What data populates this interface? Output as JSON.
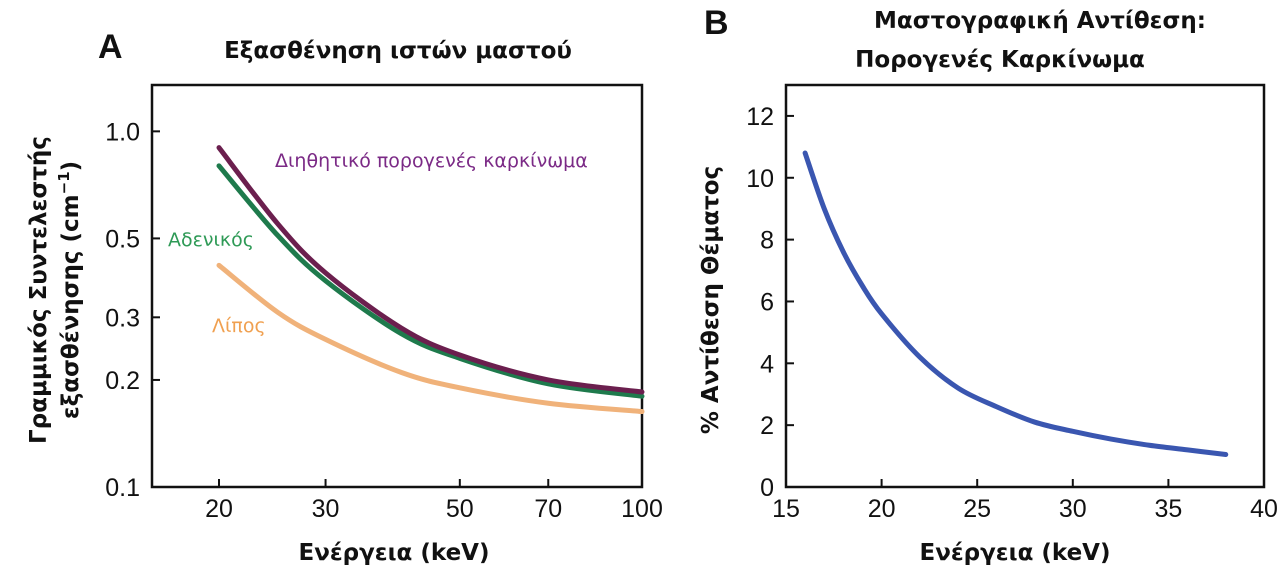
{
  "chart_data": [
    {
      "panel": "A",
      "type": "line",
      "title": "Εξασθένηση ιστών μαστού",
      "xlabel_text": "Ενέργεια",
      "xlabel_unit": "(keV)",
      "ylabel_line1": "Γραμμικός Συντελεστής",
      "ylabel_line2": "εξασθένησης",
      "ylabel_unit": "(cm",
      "ylabel_exp": "−1",
      "ylabel_close": ")",
      "x_scale": "log",
      "y_scale": "log",
      "xlim": [
        15.5,
        100
      ],
      "ylim": [
        0.1,
        1.35
      ],
      "xticks": [
        20,
        30,
        50,
        70,
        100
      ],
      "yticks": [
        0.1,
        0.2,
        0.3,
        0.5,
        1.0
      ],
      "ytick_labels": [
        "0.1",
        "0.2",
        "0.3",
        "0.5",
        "1.0"
      ],
      "grid": false,
      "series": [
        {
          "name": "Διηθητικό πορογενές καρκίνωμα",
          "color": "#6b1f4e",
          "label_color": "#7b2a86",
          "x": [
            20,
            25,
            30,
            40,
            50,
            70,
            100
          ],
          "y": [
            0.9,
            0.55,
            0.4,
            0.28,
            0.235,
            0.2,
            0.185
          ]
        },
        {
          "name": "Αδενικός",
          "color": "#1e7a4c",
          "label_color": "#2e9a56",
          "x": [
            20,
            25,
            30,
            40,
            50,
            70,
            100
          ],
          "y": [
            0.8,
            0.51,
            0.38,
            0.27,
            0.23,
            0.195,
            0.18
          ]
        },
        {
          "name": "Λίπος",
          "color": "#f0b27a",
          "label_color": "#f0a050",
          "x": [
            20,
            25,
            30,
            40,
            50,
            70,
            100
          ],
          "y": [
            0.42,
            0.31,
            0.26,
            0.21,
            0.19,
            0.172,
            0.163
          ]
        }
      ]
    },
    {
      "panel": "B",
      "type": "line",
      "title_line1": "Μαστογραφική Αντίθεση:",
      "title_line2": "Πορογενές Καρκίνωμα",
      "xlabel": "Ενέργεια (keV)",
      "ylabel": "% Αντίθεση Θέματος",
      "xlim": [
        15,
        40
      ],
      "ylim": [
        0,
        13
      ],
      "xticks": [
        15,
        20,
        25,
        30,
        35,
        40
      ],
      "yticks": [
        0,
        2,
        4,
        6,
        8,
        10,
        12
      ],
      "grid": false,
      "series": [
        {
          "color": "#3a56b0",
          "x": [
            16,
            17,
            18,
            19,
            20,
            22,
            24,
            26,
            28,
            30,
            32,
            34,
            36,
            38
          ],
          "y": [
            10.8,
            9.0,
            7.6,
            6.5,
            5.6,
            4.2,
            3.2,
            2.6,
            2.1,
            1.8,
            1.55,
            1.35,
            1.2,
            1.05
          ]
        }
      ]
    }
  ]
}
